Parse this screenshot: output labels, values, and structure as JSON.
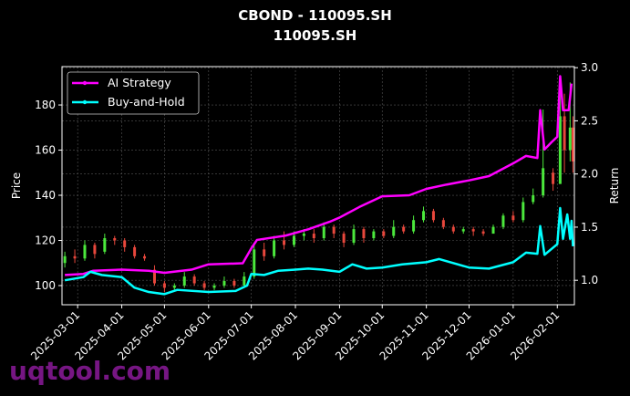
{
  "title": "CBOND - 110095.SH",
  "subtitle": "110095.SH",
  "watermark": "uqtool.com",
  "chart_data": {
    "type": "line",
    "title": "CBOND - 110095.SH\n110095.SH",
    "ylabel_left": "Price",
    "ylabel_right": "Return",
    "ylim_left": [
      91.5,
      197
    ],
    "ylim_right": [
      0.77,
      3.01
    ],
    "xlim": [
      "2025-02-18",
      "2026-02-13"
    ],
    "grid": true,
    "legend_position": "top-left",
    "x_ticks": [
      "2025-03-01",
      "2025-04-01",
      "2025-05-01",
      "2025-06-01",
      "2025-07-01",
      "2025-08-01",
      "2025-09-01",
      "2025-10-01",
      "2025-11-01",
      "2025-12-01",
      "2026-01-01",
      "2026-02-01"
    ],
    "y_ticks_left": [
      100,
      120,
      140,
      160,
      180
    ],
    "y_ticks_right": [
      "1.0",
      "1.5",
      "2.0",
      "2.5",
      "3.0"
    ],
    "colors": {
      "up": "#4be83c",
      "down": "#e8473c",
      "ai": "#ff00ff",
      "bh": "#00ffff",
      "grid": "#555555"
    },
    "candles_columns": [
      "date",
      "open",
      "close",
      "high",
      "low"
    ],
    "candles": [
      [
        "2025-02-20",
        110,
        113,
        115,
        108
      ],
      [
        "2025-02-27",
        113,
        112,
        116,
        110
      ],
      [
        "2025-03-06",
        112,
        118,
        120,
        111
      ],
      [
        "2025-03-13",
        118,
        114,
        119,
        112
      ],
      [
        "2025-03-20",
        115,
        121,
        123,
        114
      ],
      [
        "2025-03-27",
        121,
        120,
        122,
        118
      ],
      [
        "2025-04-03",
        120,
        117,
        121,
        115
      ],
      [
        "2025-04-10",
        117,
        113,
        118,
        112
      ],
      [
        "2025-04-17",
        113,
        112,
        114,
        111
      ],
      [
        "2025-04-24",
        107,
        101,
        109,
        100
      ],
      [
        "2025-05-01",
        101,
        99,
        102,
        97
      ],
      [
        "2025-05-08",
        99,
        100,
        101,
        98
      ],
      [
        "2025-05-15",
        100,
        104,
        106,
        99
      ],
      [
        "2025-05-22",
        104,
        101,
        105,
        100
      ],
      [
        "2025-05-29",
        101,
        99,
        102,
        98
      ],
      [
        "2025-06-05",
        99,
        100,
        101,
        98
      ],
      [
        "2025-06-12",
        100,
        102,
        104,
        99
      ],
      [
        "2025-06-19",
        102,
        100,
        103,
        99
      ],
      [
        "2025-06-26",
        100,
        104,
        106,
        100
      ],
      [
        "2025-07-03",
        104,
        116,
        119,
        103
      ],
      [
        "2025-07-10",
        116,
        113,
        119,
        111
      ],
      [
        "2025-07-17",
        113,
        120,
        122,
        112
      ],
      [
        "2025-07-24",
        120,
        118,
        124,
        116
      ],
      [
        "2025-07-31",
        118,
        122,
        124,
        117
      ],
      [
        "2025-08-07",
        122,
        123,
        125,
        120
      ],
      [
        "2025-08-14",
        123,
        121,
        125,
        119
      ],
      [
        "2025-08-21",
        121,
        126,
        128,
        120
      ],
      [
        "2025-08-28",
        126,
        123,
        127,
        121
      ],
      [
        "2025-09-04",
        123,
        119,
        124,
        117
      ],
      [
        "2025-09-11",
        119,
        125,
        127,
        118
      ],
      [
        "2025-09-18",
        125,
        121,
        126,
        119
      ],
      [
        "2025-09-25",
        121,
        124,
        125,
        120
      ],
      [
        "2025-10-02",
        124,
        122,
        125,
        121
      ],
      [
        "2025-10-09",
        122,
        126,
        129,
        121
      ],
      [
        "2025-10-16",
        126,
        124,
        127,
        123
      ],
      [
        "2025-10-23",
        124,
        129,
        131,
        123
      ],
      [
        "2025-10-30",
        129,
        133,
        135,
        128
      ],
      [
        "2025-11-06",
        133,
        129,
        134,
        128
      ],
      [
        "2025-11-13",
        129,
        126,
        130,
        125
      ],
      [
        "2025-11-20",
        126,
        124,
        127,
        123
      ],
      [
        "2025-11-27",
        124,
        125,
        126,
        123
      ],
      [
        "2025-12-04",
        125,
        124,
        126,
        122
      ],
      [
        "2025-12-11",
        124,
        123,
        125,
        122
      ],
      [
        "2025-12-18",
        123,
        126,
        127,
        123
      ],
      [
        "2025-12-25",
        126,
        131,
        132,
        125
      ],
      [
        "2026-01-01",
        131,
        129,
        133,
        128
      ],
      [
        "2026-01-08",
        129,
        137,
        139,
        128
      ],
      [
        "2026-01-15",
        137,
        140,
        143,
        136
      ],
      [
        "2026-01-22",
        140,
        152,
        178,
        139
      ],
      [
        "2026-01-29",
        150,
        145,
        152,
        142
      ],
      [
        "2026-02-03",
        145,
        175,
        188,
        148
      ],
      [
        "2026-02-06",
        175,
        160,
        185,
        150
      ],
      [
        "2026-02-10",
        160,
        170,
        190,
        155
      ],
      [
        "2026-02-12",
        170,
        155,
        175,
        150
      ]
    ],
    "series": [
      {
        "name": "AI Strategy",
        "axis": "right",
        "points": [
          [
            "2025-02-20",
            1.05
          ],
          [
            "2025-03-05",
            1.06
          ],
          [
            "2025-03-12",
            1.09
          ],
          [
            "2025-04-01",
            1.1
          ],
          [
            "2025-04-20",
            1.09
          ],
          [
            "2025-05-01",
            1.07
          ],
          [
            "2025-05-20",
            1.1
          ],
          [
            "2025-06-01",
            1.15
          ],
          [
            "2025-06-25",
            1.16
          ],
          [
            "2025-07-01",
            1.3
          ],
          [
            "2025-07-05",
            1.38
          ],
          [
            "2025-07-25",
            1.42
          ],
          [
            "2025-08-10",
            1.48
          ],
          [
            "2025-08-25",
            1.55
          ],
          [
            "2025-09-01",
            1.59
          ],
          [
            "2025-09-15",
            1.69
          ],
          [
            "2025-10-01",
            1.79
          ],
          [
            "2025-10-20",
            1.8
          ],
          [
            "2025-11-01",
            1.86
          ],
          [
            "2025-11-15",
            1.9
          ],
          [
            "2025-12-01",
            1.94
          ],
          [
            "2025-12-15",
            1.98
          ],
          [
            "2026-01-01",
            2.1
          ],
          [
            "2026-01-10",
            2.17
          ],
          [
            "2026-01-18",
            2.15
          ],
          [
            "2026-01-20",
            2.6
          ],
          [
            "2026-01-23",
            2.23
          ],
          [
            "2026-01-28",
            2.3
          ],
          [
            "2026-02-01",
            2.35
          ],
          [
            "2026-02-03",
            2.92
          ],
          [
            "2026-02-05",
            2.6
          ],
          [
            "2026-02-09",
            2.6
          ],
          [
            "2026-02-11",
            2.85
          ]
        ]
      },
      {
        "name": "Buy-and-Hold",
        "axis": "right",
        "points": [
          [
            "2025-02-20",
            1.0
          ],
          [
            "2025-03-05",
            1.03
          ],
          [
            "2025-03-10",
            1.08
          ],
          [
            "2025-03-18",
            1.05
          ],
          [
            "2025-04-01",
            1.03
          ],
          [
            "2025-04-10",
            0.93
          ],
          [
            "2025-04-20",
            0.89
          ],
          [
            "2025-05-01",
            0.87
          ],
          [
            "2025-05-10",
            0.91
          ],
          [
            "2025-06-01",
            0.89
          ],
          [
            "2025-06-20",
            0.9
          ],
          [
            "2025-06-28",
            0.95
          ],
          [
            "2025-07-01",
            1.06
          ],
          [
            "2025-07-10",
            1.05
          ],
          [
            "2025-07-20",
            1.09
          ],
          [
            "2025-08-01",
            1.1
          ],
          [
            "2025-08-10",
            1.11
          ],
          [
            "2025-08-20",
            1.1
          ],
          [
            "2025-09-01",
            1.08
          ],
          [
            "2025-09-10",
            1.15
          ],
          [
            "2025-09-20",
            1.11
          ],
          [
            "2025-10-01",
            1.12
          ],
          [
            "2025-10-15",
            1.15
          ],
          [
            "2025-11-01",
            1.17
          ],
          [
            "2025-11-10",
            1.2
          ],
          [
            "2025-12-01",
            1.12
          ],
          [
            "2025-12-15",
            1.11
          ],
          [
            "2026-01-01",
            1.17
          ],
          [
            "2026-01-10",
            1.26
          ],
          [
            "2026-01-18",
            1.25
          ],
          [
            "2026-01-20",
            1.51
          ],
          [
            "2026-01-23",
            1.24
          ],
          [
            "2026-02-01",
            1.34
          ],
          [
            "2026-02-03",
            1.68
          ],
          [
            "2026-02-05",
            1.39
          ],
          [
            "2026-02-08",
            1.62
          ],
          [
            "2026-02-10",
            1.39
          ],
          [
            "2026-02-11",
            1.56
          ],
          [
            "2026-02-12",
            1.32
          ]
        ]
      }
    ]
  }
}
